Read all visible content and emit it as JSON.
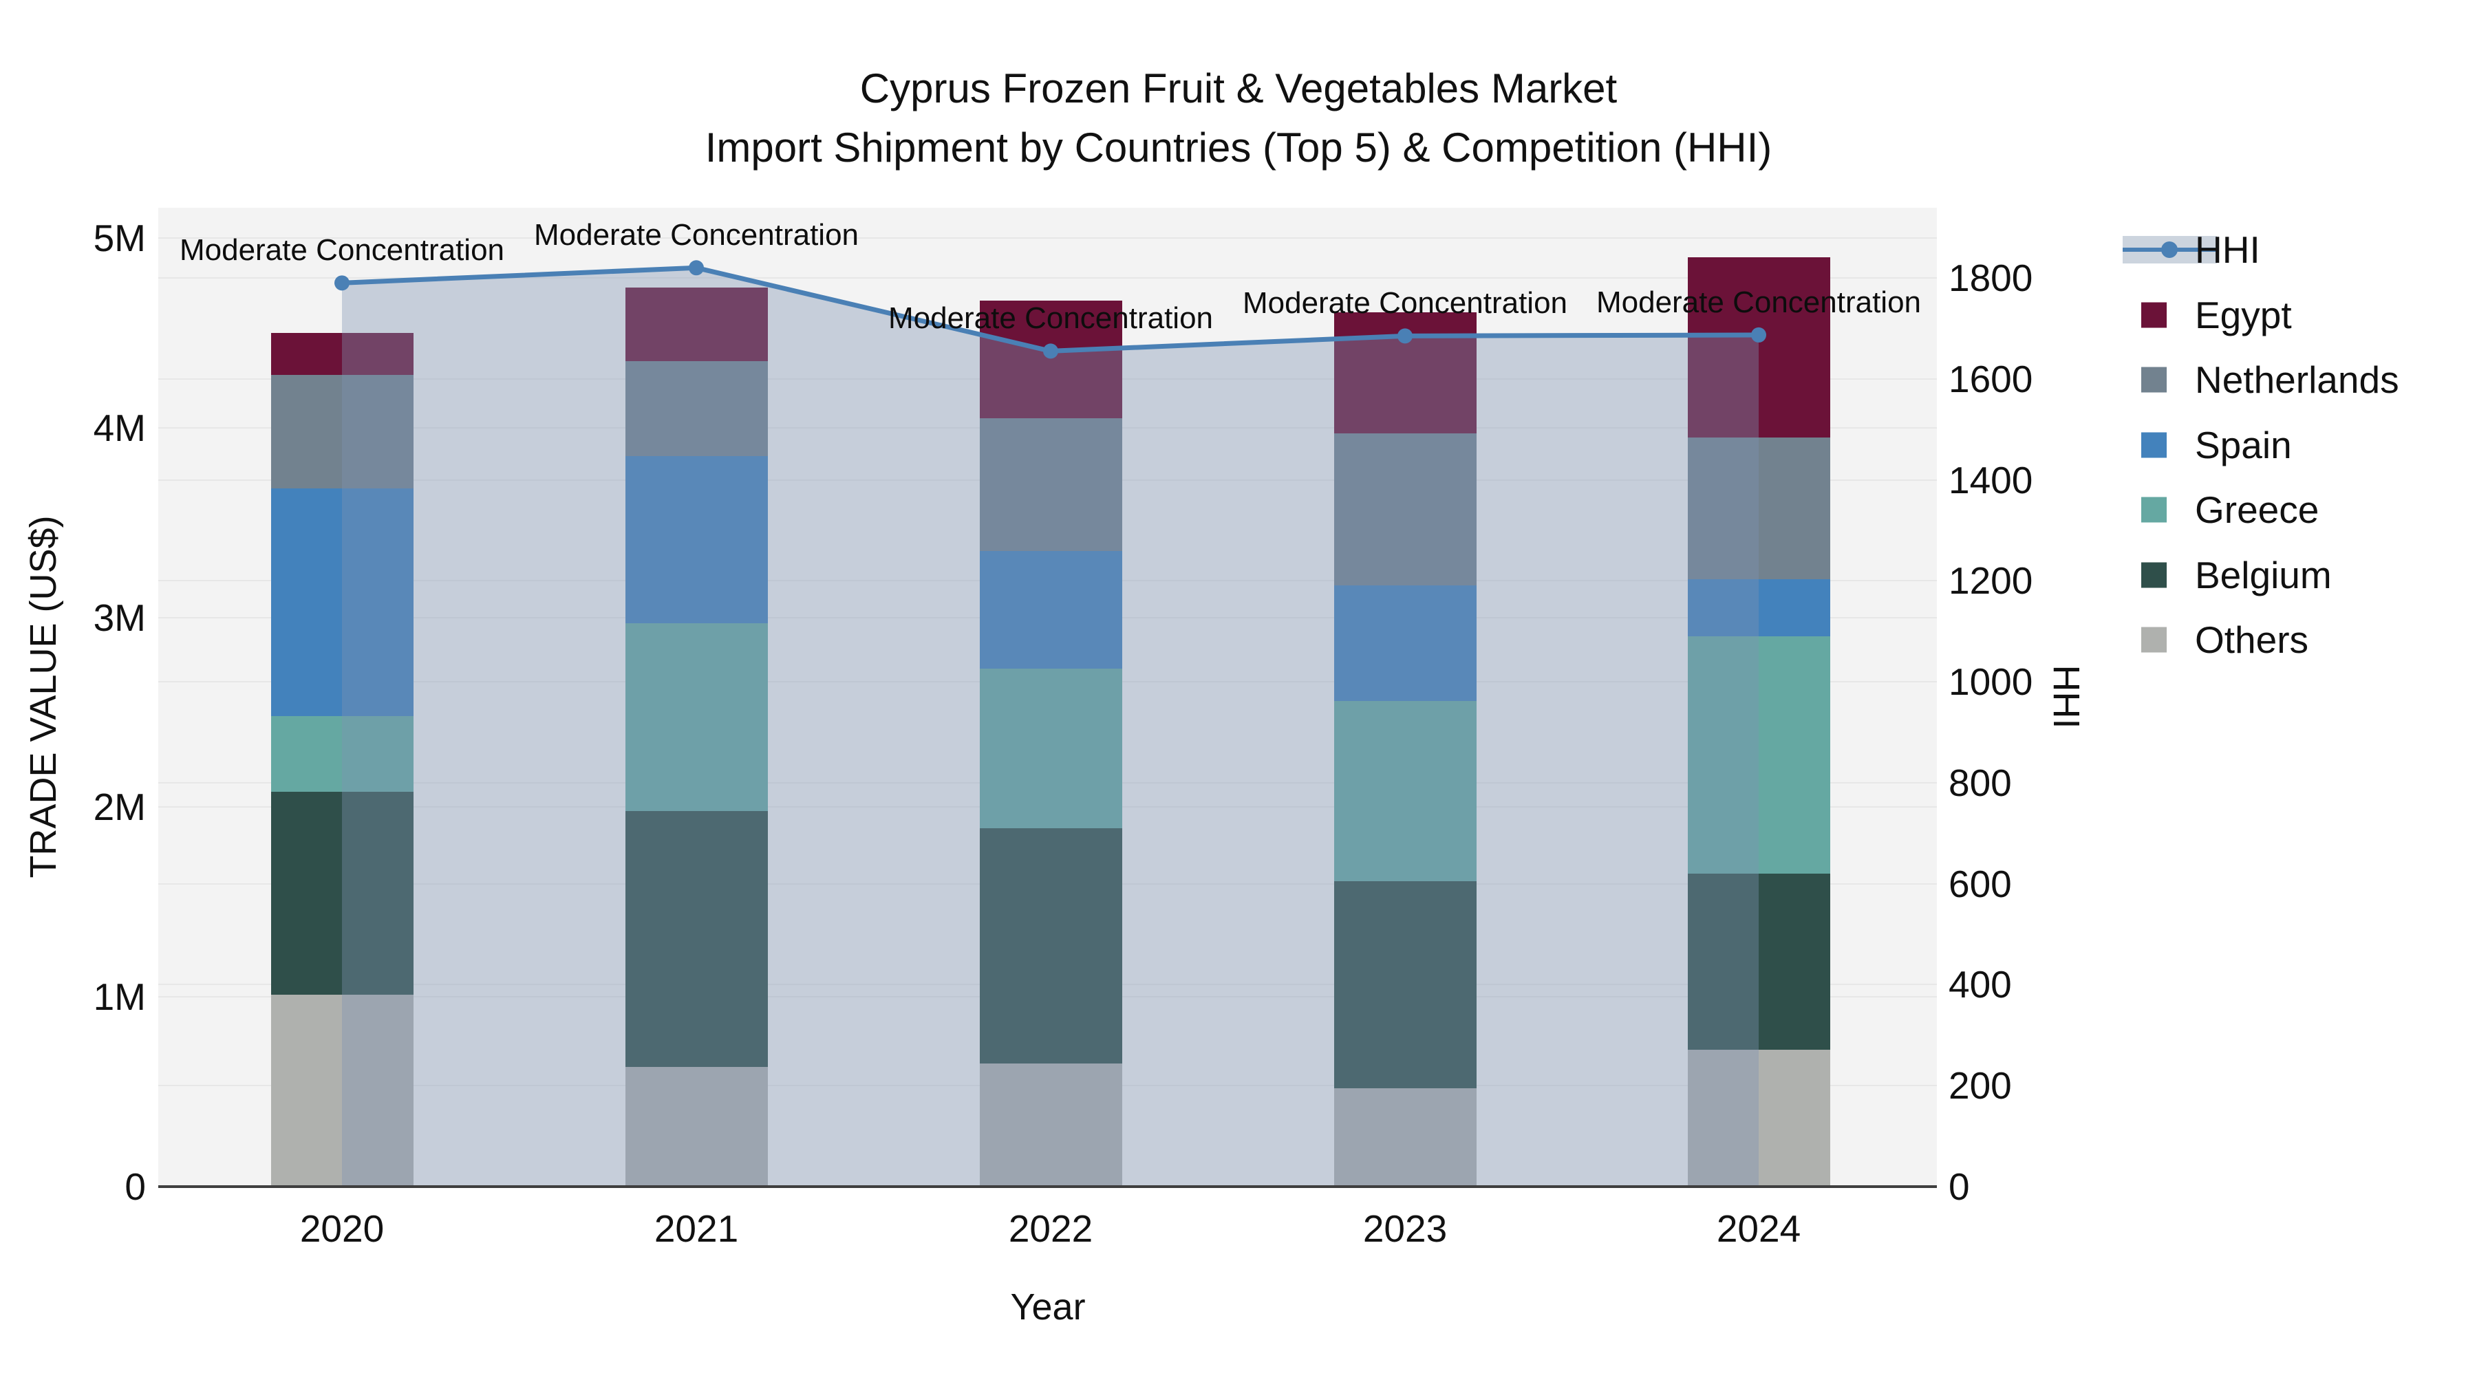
{
  "title": {
    "line1": "Cyprus Frozen Fruit & Vegetables Market",
    "line2": "Import Shipment by Countries (Top 5) & Competition (HHI)"
  },
  "axes": {
    "y_left": {
      "title": "TRADE VALUE (US$)",
      "tick_labels": [
        "0",
        "1M",
        "2M",
        "3M",
        "4M",
        "5M"
      ],
      "tick_values": [
        0,
        1,
        2,
        3,
        4,
        5
      ],
      "range_millions": [
        0,
        5.16
      ]
    },
    "y_right": {
      "title": "HHI",
      "tick_values": [
        0,
        200,
        400,
        600,
        800,
        1000,
        1200,
        1400,
        1600,
        1800
      ],
      "range": [
        0,
        1938
      ]
    },
    "x": {
      "title": "Year",
      "categories": [
        "2020",
        "2021",
        "2022",
        "2023",
        "2024"
      ]
    }
  },
  "legend": {
    "position": "right",
    "items": [
      {
        "label": "HHI",
        "type": "line",
        "color": "#4A80B5",
        "band_color": "#CCD4DE"
      },
      {
        "label": "Egypt",
        "type": "swatch",
        "color": "#6B1238"
      },
      {
        "label": "Netherlands",
        "type": "swatch",
        "color": "#72828F"
      },
      {
        "label": "Spain",
        "type": "swatch",
        "color": "#4382BC"
      },
      {
        "label": "Greece",
        "type": "swatch",
        "color": "#65A8A2"
      },
      {
        "label": "Belgium",
        "type": "swatch",
        "color": "#2F4F4A"
      },
      {
        "label": "Others",
        "type": "swatch",
        "color": "#AFB1AE"
      }
    ]
  },
  "annotation_text": "Moderate Concentration",
  "chart_data": {
    "type": "bar+line",
    "title": "Cyprus Frozen Fruit & Vegetables Market — Import Shipment by Countries (Top 5) & Competition (HHI)",
    "xlabel": "Year",
    "ylabel_left": "TRADE VALUE (US$)",
    "ylabel_right": "HHI",
    "categories": [
      "2020",
      "2021",
      "2022",
      "2023",
      "2024"
    ],
    "bar_value_unit": "millions of US$",
    "stack_order_top_to_bottom": [
      "Egypt",
      "Netherlands",
      "Spain",
      "Greece",
      "Belgium",
      "Others"
    ],
    "series": [
      {
        "name": "Egypt",
        "color": "#6B1238",
        "values": [
          0.22,
          0.39,
          0.62,
          0.64,
          0.95
        ]
      },
      {
        "name": "Netherlands",
        "color": "#72828F",
        "values": [
          0.6,
          0.5,
          0.7,
          0.8,
          0.75
        ]
      },
      {
        "name": "Spain",
        "color": "#4382BC",
        "values": [
          1.2,
          0.88,
          0.62,
          0.61,
          0.3
        ]
      },
      {
        "name": "Greece",
        "color": "#65A8A2",
        "values": [
          0.4,
          0.99,
          0.84,
          0.95,
          1.25
        ]
      },
      {
        "name": "Belgium",
        "color": "#2F4F4A",
        "values": [
          1.07,
          1.35,
          1.24,
          1.09,
          0.93
        ]
      },
      {
        "name": "Others",
        "color": "#AFB1AE",
        "values": [
          1.01,
          0.63,
          0.65,
          0.52,
          0.72
        ]
      }
    ],
    "bar_totals_millions": [
      4.5,
      4.74,
      4.67,
      4.61,
      4.9
    ],
    "line_series": {
      "name": "HHI",
      "axis": "right",
      "color": "#4A80B5",
      "fill_to_zero": true,
      "fill_color": "rgba(125,148,178,0.38)",
      "values": [
        1790,
        1820,
        1655,
        1685,
        1687
      ]
    },
    "point_annotations": [
      {
        "x": "2020",
        "text": "Moderate Concentration"
      },
      {
        "x": "2021",
        "text": "Moderate Concentration"
      },
      {
        "x": "2022",
        "text": "Moderate Concentration"
      },
      {
        "x": "2023",
        "text": "Moderate Concentration"
      },
      {
        "x": "2024",
        "text": "Moderate Concentration"
      }
    ],
    "ylim_left_millions": [
      0,
      5.16
    ],
    "ylim_right": [
      0,
      1938
    ],
    "grid": true,
    "legend_position": "right",
    "plot_background": "#f3f3f3"
  }
}
